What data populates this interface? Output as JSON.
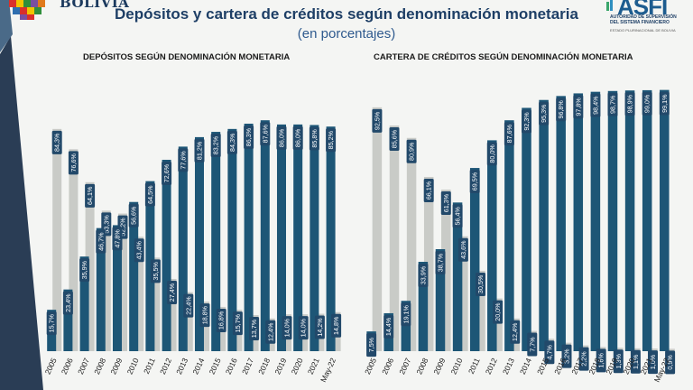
{
  "header": {
    "country": "BOLIVIA",
    "title": "Depósitos y cartera de créditos según denominación monetaria",
    "subtitle": "(en porcentajes)"
  },
  "logo": {
    "name": "ASFI",
    "line1": "AUTORIDAD DE SUPERVISIÓN",
    "line2": "DEL SISTEMA FINANCIERO",
    "line3": "ESTADO PLURINACIONAL DE BOLIVIA"
  },
  "colors": {
    "boliviano": "#1d5676",
    "foreign": "#c9cbc7",
    "label_bg": "#22496a",
    "label_text": "#ffffff"
  },
  "chart_data": [
    {
      "type": "bar",
      "title": "DEPÓSITOS SEGÚN DENOMINACIÓN MONETARIA",
      "categories": [
        "2005",
        "2006",
        "2007",
        "2008",
        "2009",
        "2010",
        "2011",
        "2012",
        "2013",
        "2014",
        "2015",
        "2016",
        "2017",
        "2018",
        "2019",
        "2020",
        "2021",
        "May-22"
      ],
      "series": [
        {
          "values": [
            15.7,
            23.4,
            35.9,
            46.7,
            47.8,
            56.6,
            64.5,
            72.6,
            77.6,
            81.2,
            83.2,
            84.3,
            86.3,
            87.6,
            86.0,
            86.0,
            85.8,
            85.2
          ],
          "labels": [
            "15,7%",
            "23,4%",
            "35,9%",
            "46,7%",
            "47,8%",
            "56,6%",
            "64,5%",
            "72,6%",
            "77,6%",
            "81,2%",
            "83,2%",
            "84,3%",
            "86,3%",
            "87,6%",
            "86,0%",
            "86,0%",
            "85,8%",
            "85,2%"
          ]
        },
        {
          "values": [
            84.3,
            76.6,
            64.1,
            53.3,
            52.2,
            43.4,
            35.5,
            27.4,
            22.4,
            18.8,
            16.8,
            15.7,
            13.7,
            12.4,
            14.0,
            14.0,
            14.2,
            14.8
          ],
          "labels": [
            "84,3%",
            "76,6%",
            "64,1%",
            "53,3%",
            "52,2%",
            "43,4%",
            "35,5%",
            "27,4%",
            "22,4%",
            "18,8%",
            "16,8%",
            "15,7%",
            "13,7%",
            "12,4%",
            "14,0%",
            "14,0%",
            "14,2%",
            "14,8%"
          ]
        }
      ],
      "ylim": [
        0,
        100
      ],
      "grid": false
    },
    {
      "type": "bar",
      "title": "CARTERA DE CRÉDITOS SEGÚN DENOMINACIÓN MONETARIA",
      "categories": [
        "2005",
        "2006",
        "2007",
        "2008",
        "2009",
        "2010",
        "2011",
        "2012",
        "2013",
        "2014",
        "2015",
        "2016",
        "2017",
        "2018",
        "2019",
        "2020",
        "2021",
        "May-22"
      ],
      "series": [
        {
          "values": [
            7.5,
            14.4,
            19.1,
            33.9,
            38.7,
            56.4,
            69.5,
            80.0,
            87.6,
            92.3,
            95.3,
            96.8,
            97.8,
            98.4,
            98.7,
            98.9,
            99.0,
            99.1
          ],
          "labels": [
            "7,5%",
            "14,4%",
            "19,1%",
            "33,9%",
            "38,7%",
            "56,4%",
            "69,5%",
            "80,0%",
            "87,6%",
            "92,3%",
            "95,3%",
            "96,8%",
            "97,8%",
            "98,4%",
            "98,7%",
            "98,9%",
            "99,0%",
            "99,1%"
          ]
        },
        {
          "values": [
            92.5,
            85.6,
            80.9,
            66.1,
            61.3,
            43.6,
            30.5,
            20.0,
            12.4,
            7.7,
            4.7,
            3.2,
            2.2,
            1.6,
            1.3,
            1.1,
            1.0,
            0.9
          ],
          "labels": [
            "92,5%",
            "85,6%",
            "80,9%",
            "66,1%",
            "61,3%",
            "43,6%",
            "30,5%",
            "20,0%",
            "12,4%",
            "7,7%",
            "4,7%",
            "3,2%",
            "2,2%",
            "1,6%",
            "1,3%",
            "1,1%",
            "1,0%",
            "0,9%"
          ]
        }
      ],
      "ylim": [
        0,
        100
      ],
      "grid": false
    }
  ]
}
